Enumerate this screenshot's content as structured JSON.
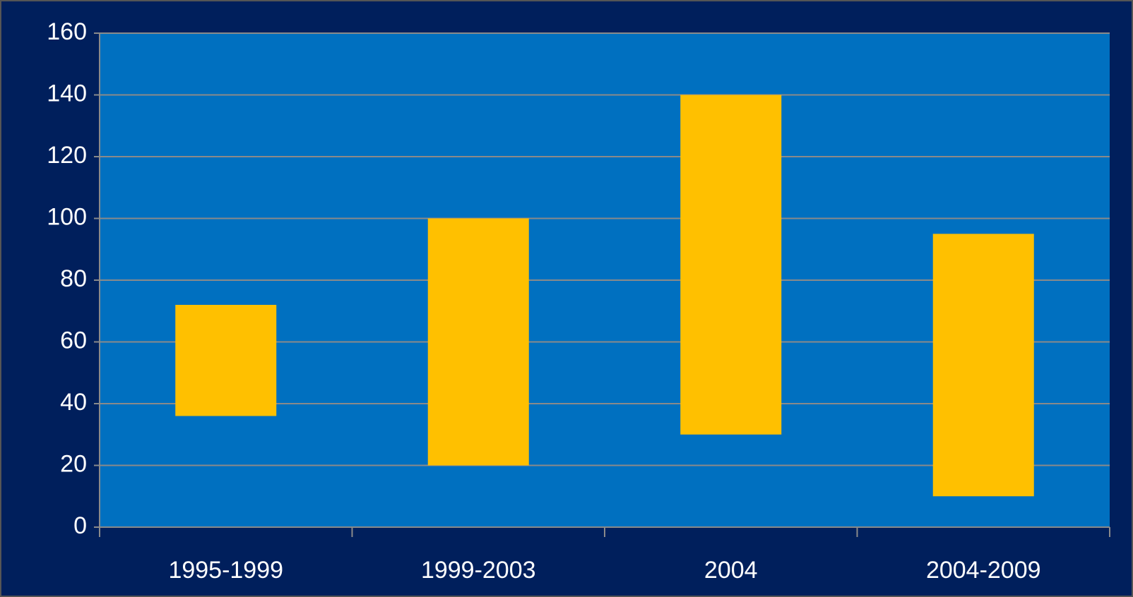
{
  "chart_data": {
    "type": "range_bar",
    "categories": [
      "1995-1999",
      "1999-2003",
      "2004",
      "2004-2009"
    ],
    "lows": [
      36,
      20,
      30,
      10
    ],
    "highs": [
      72,
      100,
      140,
      95
    ],
    "color": "#ffc000",
    "ylim": [
      0,
      160
    ],
    "yticks": [
      0,
      20,
      40,
      60,
      80,
      100,
      120,
      140,
      160
    ],
    "grid": true
  }
}
